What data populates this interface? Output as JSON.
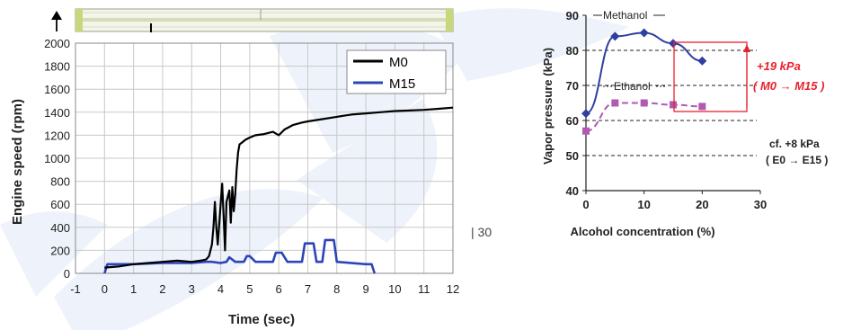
{
  "page_number": "| 30",
  "colors": {
    "m0": "#000000",
    "m15": "#2e45b8",
    "methanol": "#2e3fa0",
    "ethanol": "#b05ab0",
    "annotation": "#e8222c",
    "watermark": "#eef3fb"
  },
  "chart_data": [
    {
      "type": "line",
      "xlabel": "Time (sec)",
      "ylabel": "Engine speed  (rpm)",
      "xlim": [
        -1,
        12
      ],
      "ylim": [
        0,
        2000
      ],
      "x_ticks": [
        "-1",
        "0",
        "1",
        "2",
        "3",
        "4",
        "5",
        "6",
        "7",
        "8",
        "9",
        "10",
        "11",
        "12"
      ],
      "y_ticks": [
        "0",
        "200",
        "400",
        "600",
        "800",
        "1000",
        "1200",
        "1400",
        "1600",
        "1800",
        "2000"
      ],
      "grid": true,
      "legend_position": "top-right",
      "series": [
        {
          "name": "M0",
          "color": "#000000",
          "x": [
            0,
            0.5,
            1,
            1.5,
            2,
            2.5,
            3,
            3.3,
            3.5,
            3.6,
            3.7,
            3.75,
            3.8,
            3.85,
            3.9,
            4.0,
            4.05,
            4.1,
            4.15,
            4.2,
            4.3,
            4.35,
            4.4,
            4.45,
            4.5,
            4.55,
            4.6,
            4.65,
            4.75,
            4.85,
            5.0,
            5.2,
            5.5,
            5.8,
            6.0,
            6.2,
            6.5,
            6.8,
            7.0,
            7.5,
            8,
            8.5,
            9,
            9.5,
            10,
            10.5,
            11,
            11.5,
            12
          ],
          "y": [
            50,
            60,
            80,
            90,
            100,
            110,
            100,
            110,
            120,
            150,
            250,
            400,
            620,
            400,
            250,
            600,
            780,
            500,
            200,
            620,
            720,
            440,
            750,
            540,
            680,
            900,
            1050,
            1120,
            1140,
            1160,
            1180,
            1200,
            1210,
            1230,
            1200,
            1250,
            1290,
            1310,
            1320,
            1340,
            1360,
            1380,
            1390,
            1400,
            1410,
            1415,
            1420,
            1430,
            1440
          ]
        },
        {
          "name": "M15",
          "color": "#2e45b8",
          "x": [
            0,
            0.1,
            1,
            2,
            3,
            3.5,
            3.7,
            4.0,
            4.2,
            4.3,
            4.5,
            4.8,
            4.9,
            5.0,
            5.2,
            5.3,
            5.8,
            5.9,
            6.1,
            6.3,
            6.8,
            6.9,
            7.2,
            7.3,
            7.5,
            7.6,
            7.9,
            8.0,
            9.0,
            9.2,
            9.3
          ],
          "y": [
            0,
            80,
            80,
            90,
            90,
            100,
            100,
            90,
            100,
            140,
            100,
            100,
            150,
            150,
            100,
            100,
            100,
            180,
            180,
            100,
            100,
            260,
            260,
            100,
            100,
            290,
            290,
            100,
            80,
            80,
            0
          ]
        }
      ]
    },
    {
      "type": "line",
      "xlabel": "Alcohol concentration (%)",
      "ylabel": "Vapor pressure (kPa)",
      "xlim": [
        0,
        30
      ],
      "ylim": [
        40,
        90
      ],
      "x_ticks": [
        "0",
        "10",
        "20",
        "30"
      ],
      "y_ticks": [
        "40",
        "50",
        "60",
        "70",
        "80",
        "90"
      ],
      "series": [
        {
          "name": "Methanol",
          "color": "#2e3fa0",
          "marker": "diamond",
          "x": [
            0,
            5,
            10,
            15,
            20
          ],
          "y": [
            62,
            84,
            85,
            82,
            77
          ]
        },
        {
          "name": "Ethanol",
          "color": "#b05ab0",
          "marker": "square",
          "dashed": true,
          "x": [
            0,
            5,
            10,
            15,
            20
          ],
          "y": [
            57,
            65,
            65,
            64.5,
            64
          ]
        }
      ],
      "reference_lines": [
        50,
        60,
        70,
        80
      ],
      "annotations": {
        "methanol_delta_line1": "+19 kPa",
        "methanol_delta_line2": "( M0 → M15 )",
        "methanol_delta_range": [
          62,
          82
        ],
        "ethanol_delta_line1": "cf. +8 kPa",
        "ethanol_delta_line2": "( E0 → E15 )"
      }
    }
  ]
}
